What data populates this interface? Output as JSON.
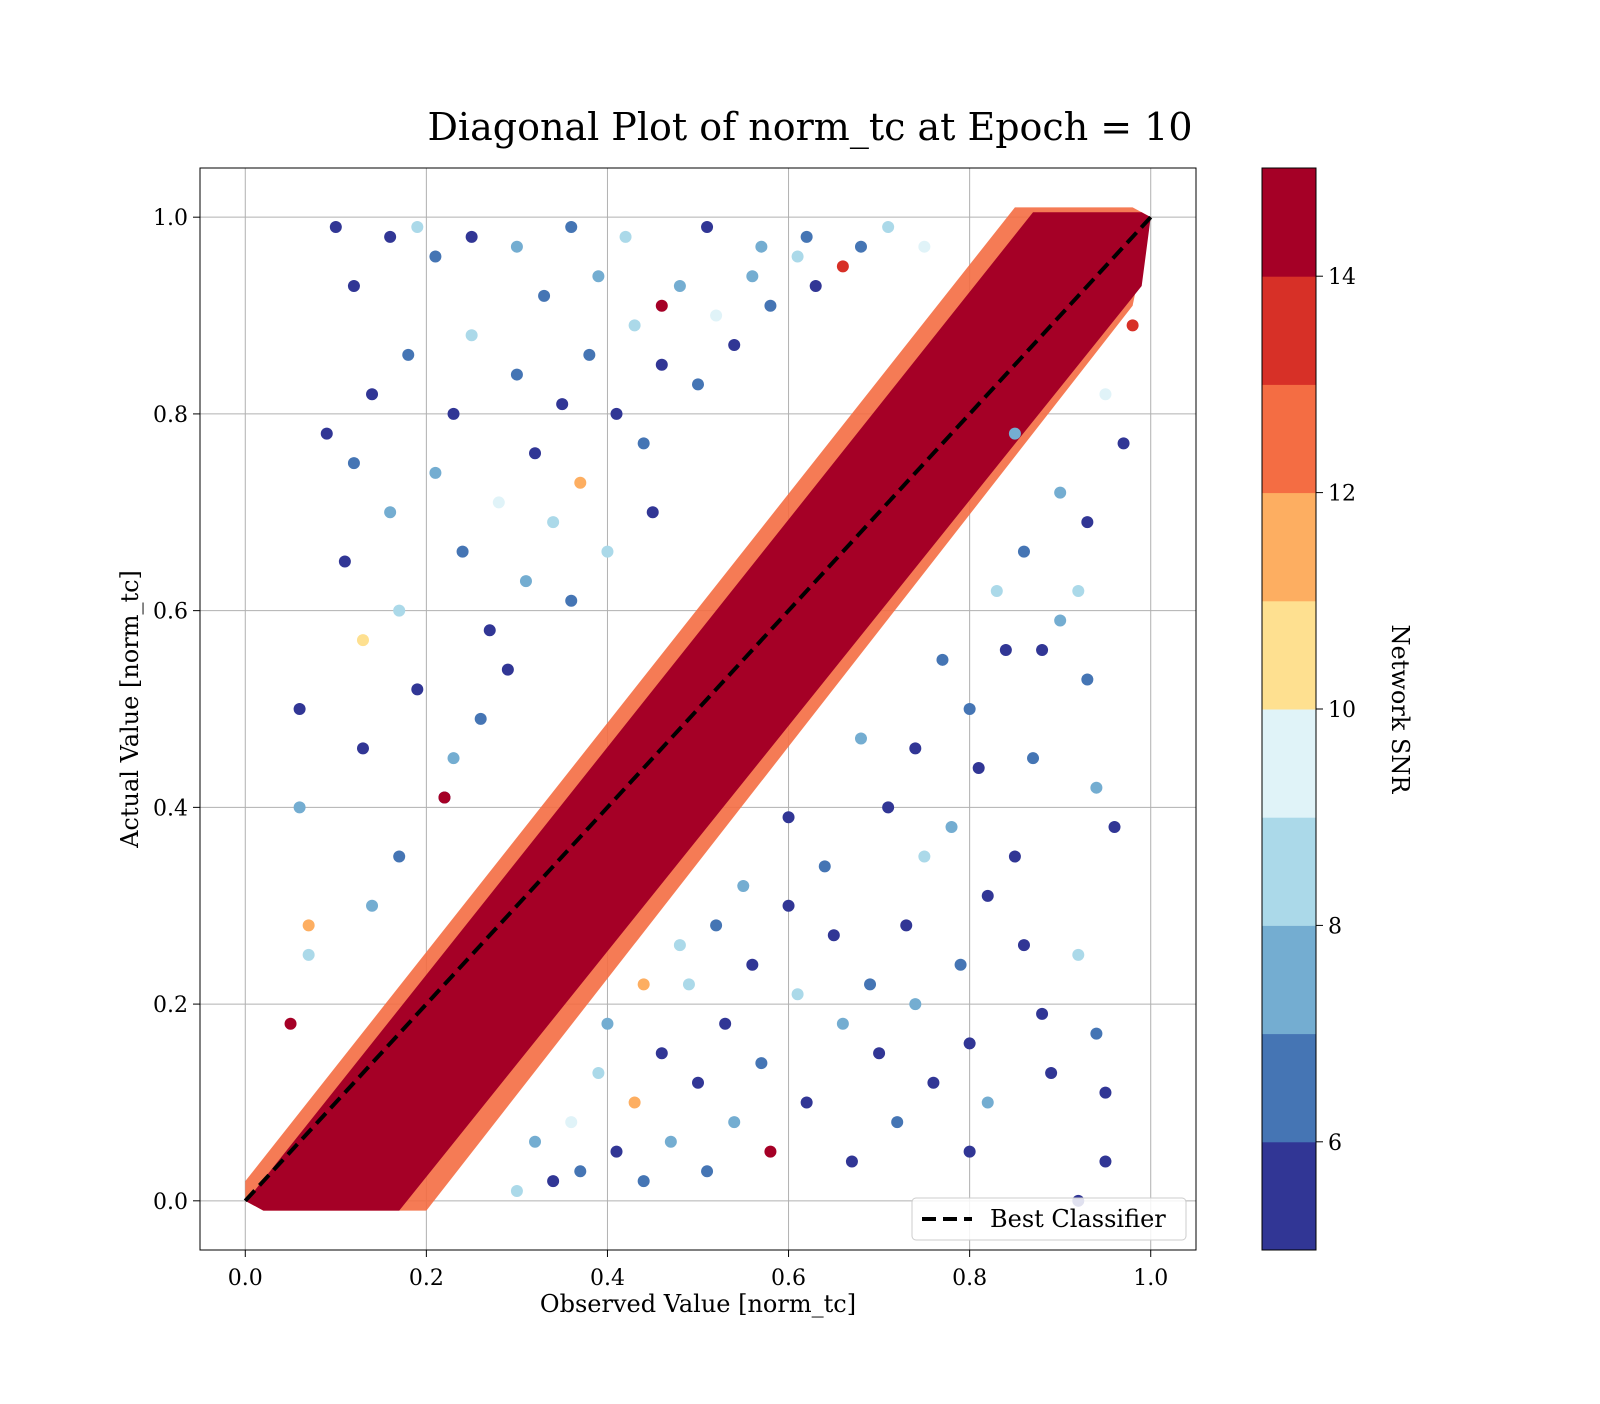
{
  "chart_data": {
    "type": "scatter",
    "title": "Diagonal Plot of norm_tc at Epoch = 10",
    "xlabel": "Observed Value [norm_tc]",
    "ylabel": "Actual Value [norm_tc]",
    "xlim": [
      -0.05,
      1.05
    ],
    "ylim": [
      -0.05,
      1.05
    ],
    "xticks": [
      "0.0",
      "0.2",
      "0.4",
      "0.6",
      "0.8",
      "1.0"
    ],
    "yticks": [
      "0.0",
      "0.2",
      "0.4",
      "0.6",
      "0.8",
      "1.0"
    ],
    "xtick_values": [
      0.0,
      0.2,
      0.4,
      0.6,
      0.8,
      1.0
    ],
    "ytick_values": [
      0.0,
      0.2,
      0.4,
      0.6,
      0.8,
      1.0
    ],
    "grid": true,
    "reference_line": {
      "name": "Best Classifier",
      "x": [
        0.0,
        1.0
      ],
      "y": [
        0.0,
        1.0
      ],
      "style": "dashed",
      "color": "#000000"
    },
    "legend": {
      "position": "lower-right",
      "entries": [
        "Best Classifier"
      ]
    },
    "colorbar": {
      "label": "Network SNR",
      "range": [
        5,
        15
      ],
      "ticks": [
        "6",
        "8",
        "10",
        "12",
        "14"
      ],
      "tick_values": [
        6,
        8,
        10,
        12,
        14
      ],
      "colors": [
        "#313695",
        "#4575b4",
        "#74add1",
        "#abd9e9",
        "#e0f3f8",
        "#fee090",
        "#fdae61",
        "#f46d43",
        "#d73027",
        "#a50026"
      ]
    },
    "points": [
      {
        "x": 0.1,
        "y": 0.99,
        "snr": 5.5
      },
      {
        "x": 0.12,
        "y": 0.93,
        "snr": 5.5
      },
      {
        "x": 0.16,
        "y": 0.98,
        "snr": 5.5
      },
      {
        "x": 0.19,
        "y": 0.99,
        "snr": 8.5
      },
      {
        "x": 0.21,
        "y": 0.96,
        "snr": 6.5
      },
      {
        "x": 0.25,
        "y": 0.98,
        "snr": 5.5
      },
      {
        "x": 0.3,
        "y": 0.97,
        "snr": 7.5
      },
      {
        "x": 0.36,
        "y": 0.99,
        "snr": 6.5
      },
      {
        "x": 0.42,
        "y": 0.98,
        "snr": 8.5
      },
      {
        "x": 0.46,
        "y": 0.91,
        "snr": 14.5
      },
      {
        "x": 0.51,
        "y": 0.99,
        "snr": 5.5
      },
      {
        "x": 0.57,
        "y": 0.97,
        "snr": 7.5
      },
      {
        "x": 0.62,
        "y": 0.98,
        "snr": 6.5
      },
      {
        "x": 0.66,
        "y": 0.95,
        "snr": 13.5
      },
      {
        "x": 0.71,
        "y": 0.99,
        "snr": 8.5
      },
      {
        "x": 0.75,
        "y": 0.97,
        "snr": 9.5
      },
      {
        "x": 0.85,
        "y": 0.78,
        "snr": 7.5
      },
      {
        "x": 0.06,
        "y": 0.5,
        "snr": 5.5
      },
      {
        "x": 0.06,
        "y": 0.4,
        "snr": 7.5
      },
      {
        "x": 0.09,
        "y": 0.78,
        "snr": 5.5
      },
      {
        "x": 0.11,
        "y": 0.65,
        "snr": 5.5
      },
      {
        "x": 0.12,
        "y": 0.75,
        "snr": 6.5
      },
      {
        "x": 0.13,
        "y": 0.46,
        "snr": 5.5
      },
      {
        "x": 0.14,
        "y": 0.82,
        "snr": 5.5
      },
      {
        "x": 0.13,
        "y": 0.57,
        "snr": 10.5
      },
      {
        "x": 0.16,
        "y": 0.7,
        "snr": 7.5
      },
      {
        "x": 0.17,
        "y": 0.6,
        "snr": 8.5
      },
      {
        "x": 0.18,
        "y": 0.86,
        "snr": 6.5
      },
      {
        "x": 0.19,
        "y": 0.52,
        "snr": 5.5
      },
      {
        "x": 0.21,
        "y": 0.74,
        "snr": 7.5
      },
      {
        "x": 0.23,
        "y": 0.8,
        "snr": 5.5
      },
      {
        "x": 0.24,
        "y": 0.66,
        "snr": 6.5
      },
      {
        "x": 0.25,
        "y": 0.88,
        "snr": 8.5
      },
      {
        "x": 0.27,
        "y": 0.58,
        "snr": 5.5
      },
      {
        "x": 0.28,
        "y": 0.71,
        "snr": 9.5
      },
      {
        "x": 0.3,
        "y": 0.84,
        "snr": 6.5
      },
      {
        "x": 0.31,
        "y": 0.63,
        "snr": 7.5
      },
      {
        "x": 0.32,
        "y": 0.76,
        "snr": 5.5
      },
      {
        "x": 0.33,
        "y": 0.92,
        "snr": 6.5
      },
      {
        "x": 0.34,
        "y": 0.69,
        "snr": 8.5
      },
      {
        "x": 0.35,
        "y": 0.81,
        "snr": 5.5
      },
      {
        "x": 0.37,
        "y": 0.73,
        "snr": 11.5
      },
      {
        "x": 0.38,
        "y": 0.86,
        "snr": 6.5
      },
      {
        "x": 0.39,
        "y": 0.94,
        "snr": 7.5
      },
      {
        "x": 0.41,
        "y": 0.8,
        "snr": 5.5
      },
      {
        "x": 0.43,
        "y": 0.89,
        "snr": 8.5
      },
      {
        "x": 0.44,
        "y": 0.77,
        "snr": 6.5
      },
      {
        "x": 0.46,
        "y": 0.85,
        "snr": 5.5
      },
      {
        "x": 0.48,
        "y": 0.93,
        "snr": 7.5
      },
      {
        "x": 0.5,
        "y": 0.83,
        "snr": 6.5
      },
      {
        "x": 0.52,
        "y": 0.9,
        "snr": 9.5
      },
      {
        "x": 0.54,
        "y": 0.87,
        "snr": 5.5
      },
      {
        "x": 0.56,
        "y": 0.94,
        "snr": 7.5
      },
      {
        "x": 0.58,
        "y": 0.91,
        "snr": 6.5
      },
      {
        "x": 0.61,
        "y": 0.96,
        "snr": 8.5
      },
      {
        "x": 0.63,
        "y": 0.93,
        "snr": 5.5
      },
      {
        "x": 0.68,
        "y": 0.97,
        "snr": 6.5
      },
      {
        "x": 0.17,
        "y": 0.35,
        "snr": 6.5
      },
      {
        "x": 0.14,
        "y": 0.3,
        "snr": 7.5
      },
      {
        "x": 0.07,
        "y": 0.25,
        "snr": 8.5
      },
      {
        "x": 0.07,
        "y": 0.28,
        "snr": 11.5
      },
      {
        "x": 0.05,
        "y": 0.18,
        "snr": 14.5
      },
      {
        "x": 0.22,
        "y": 0.41,
        "snr": 5.5
      },
      {
        "x": 0.23,
        "y": 0.45,
        "snr": 7.5
      },
      {
        "x": 0.26,
        "y": 0.49,
        "snr": 6.5
      },
      {
        "x": 0.29,
        "y": 0.54,
        "snr": 5.5
      },
      {
        "x": 0.22,
        "y": 0.41,
        "snr": 14.5
      },
      {
        "x": 0.36,
        "y": 0.61,
        "snr": 6.5
      },
      {
        "x": 0.4,
        "y": 0.66,
        "snr": 8.5
      },
      {
        "x": 0.45,
        "y": 0.7,
        "snr": 5.5
      },
      {
        "x": 0.97,
        "y": 0.77,
        "snr": 5.5
      },
      {
        "x": 0.96,
        "y": 0.38,
        "snr": 5.5
      },
      {
        "x": 0.95,
        "y": 0.11,
        "snr": 5.5
      },
      {
        "x": 0.95,
        "y": 0.04,
        "snr": 5.5
      },
      {
        "x": 0.92,
        "y": 0.0,
        "snr": 5.5
      },
      {
        "x": 0.92,
        "y": 0.25,
        "snr": 8.5
      },
      {
        "x": 0.94,
        "y": 0.17,
        "snr": 6.5
      },
      {
        "x": 0.94,
        "y": 0.42,
        "snr": 7.5
      },
      {
        "x": 0.93,
        "y": 0.53,
        "snr": 6.5
      },
      {
        "x": 0.92,
        "y": 0.62,
        "snr": 8.5
      },
      {
        "x": 0.93,
        "y": 0.69,
        "snr": 5.5
      },
      {
        "x": 0.89,
        "y": 0.13,
        "snr": 5.5
      },
      {
        "x": 0.88,
        "y": 0.19,
        "snr": 5.5
      },
      {
        "x": 0.86,
        "y": 0.26,
        "snr": 5.5
      },
      {
        "x": 0.85,
        "y": 0.35,
        "snr": 5.5
      },
      {
        "x": 0.87,
        "y": 0.45,
        "snr": 6.5
      },
      {
        "x": 0.88,
        "y": 0.56,
        "snr": 5.5
      },
      {
        "x": 0.9,
        "y": 0.59,
        "snr": 7.5
      },
      {
        "x": 0.8,
        "y": 0.05,
        "snr": 5.5
      },
      {
        "x": 0.82,
        "y": 0.1,
        "snr": 7.5
      },
      {
        "x": 0.8,
        "y": 0.16,
        "snr": 5.5
      },
      {
        "x": 0.79,
        "y": 0.24,
        "snr": 6.5
      },
      {
        "x": 0.82,
        "y": 0.31,
        "snr": 5.5
      },
      {
        "x": 0.78,
        "y": 0.38,
        "snr": 7.5
      },
      {
        "x": 0.81,
        "y": 0.44,
        "snr": 5.5
      },
      {
        "x": 0.8,
        "y": 0.5,
        "snr": 6.5
      },
      {
        "x": 0.76,
        "y": 0.12,
        "snr": 5.5
      },
      {
        "x": 0.74,
        "y": 0.2,
        "snr": 7.5
      },
      {
        "x": 0.73,
        "y": 0.28,
        "snr": 5.5
      },
      {
        "x": 0.75,
        "y": 0.35,
        "snr": 8.5
      },
      {
        "x": 0.72,
        "y": 0.08,
        "snr": 6.5
      },
      {
        "x": 0.7,
        "y": 0.15,
        "snr": 5.5
      },
      {
        "x": 0.69,
        "y": 0.22,
        "snr": 6.5
      },
      {
        "x": 0.71,
        "y": 0.4,
        "snr": 5.5
      },
      {
        "x": 0.67,
        "y": 0.04,
        "snr": 5.5
      },
      {
        "x": 0.66,
        "y": 0.18,
        "snr": 7.5
      },
      {
        "x": 0.65,
        "y": 0.27,
        "snr": 5.5
      },
      {
        "x": 0.64,
        "y": 0.34,
        "snr": 6.5
      },
      {
        "x": 0.62,
        "y": 0.1,
        "snr": 5.5
      },
      {
        "x": 0.61,
        "y": 0.21,
        "snr": 8.5
      },
      {
        "x": 0.6,
        "y": 0.3,
        "snr": 5.5
      },
      {
        "x": 0.58,
        "y": 0.05,
        "snr": 14.5
      },
      {
        "x": 0.57,
        "y": 0.14,
        "snr": 6.5
      },
      {
        "x": 0.56,
        "y": 0.24,
        "snr": 5.5
      },
      {
        "x": 0.54,
        "y": 0.08,
        "snr": 7.5
      },
      {
        "x": 0.53,
        "y": 0.18,
        "snr": 5.5
      },
      {
        "x": 0.51,
        "y": 0.03,
        "snr": 6.5
      },
      {
        "x": 0.5,
        "y": 0.12,
        "snr": 5.5
      },
      {
        "x": 0.49,
        "y": 0.22,
        "snr": 8.5
      },
      {
        "x": 0.47,
        "y": 0.06,
        "snr": 7.5
      },
      {
        "x": 0.46,
        "y": 0.15,
        "snr": 5.5
      },
      {
        "x": 0.44,
        "y": 0.02,
        "snr": 6.5
      },
      {
        "x": 0.43,
        "y": 0.1,
        "snr": 11.5
      },
      {
        "x": 0.41,
        "y": 0.05,
        "snr": 5.5
      },
      {
        "x": 0.39,
        "y": 0.13,
        "snr": 8.5
      },
      {
        "x": 0.37,
        "y": 0.03,
        "snr": 6.5
      },
      {
        "x": 0.36,
        "y": 0.08,
        "snr": 9.5
      },
      {
        "x": 0.34,
        "y": 0.02,
        "snr": 5.5
      },
      {
        "x": 0.32,
        "y": 0.06,
        "snr": 7.5
      },
      {
        "x": 0.3,
        "y": 0.01,
        "snr": 8.5
      },
      {
        "x": 0.68,
        "y": 0.47,
        "snr": 7.5
      },
      {
        "x": 0.74,
        "y": 0.46,
        "snr": 5.5
      },
      {
        "x": 0.77,
        "y": 0.55,
        "snr": 6.5
      },
      {
        "x": 0.84,
        "y": 0.56,
        "snr": 5.5
      },
      {
        "x": 0.83,
        "y": 0.62,
        "snr": 8.5
      },
      {
        "x": 0.86,
        "y": 0.66,
        "snr": 6.5
      },
      {
        "x": 0.9,
        "y": 0.72,
        "snr": 7.5
      },
      {
        "x": 0.6,
        "y": 0.39,
        "snr": 5.5
      },
      {
        "x": 0.55,
        "y": 0.32,
        "snr": 7.5
      },
      {
        "x": 0.52,
        "y": 0.28,
        "snr": 6.5
      },
      {
        "x": 0.48,
        "y": 0.26,
        "snr": 8.5
      },
      {
        "x": 0.44,
        "y": 0.22,
        "snr": 11.5
      },
      {
        "x": 0.4,
        "y": 0.18,
        "snr": 7.5
      },
      {
        "x": 0.95,
        "y": 0.82,
        "snr": 9.5
      },
      {
        "x": 0.98,
        "y": 0.89,
        "snr": 13.5
      }
    ]
  }
}
